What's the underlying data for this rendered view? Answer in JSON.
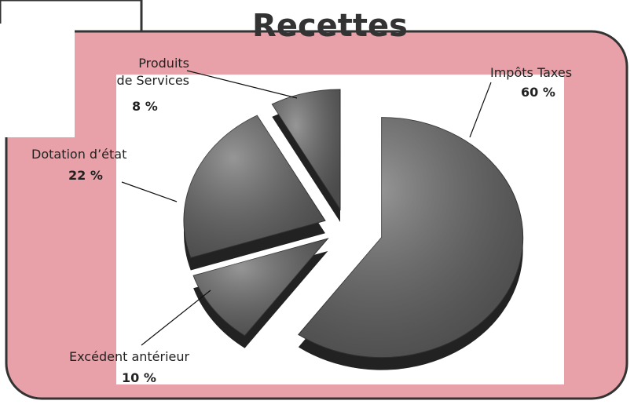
{
  "chart_data": {
    "type": "pie",
    "title": "Recettes",
    "categories": [
      "Impôts Taxes",
      "Excédent antérieur",
      "Dotation d’état",
      "Produits\nde Services"
    ],
    "values": [
      60,
      10,
      22,
      8
    ],
    "value_labels": [
      "60 %",
      "10 %",
      "22 %",
      "8 %"
    ],
    "color": "#5e5e5e"
  }
}
